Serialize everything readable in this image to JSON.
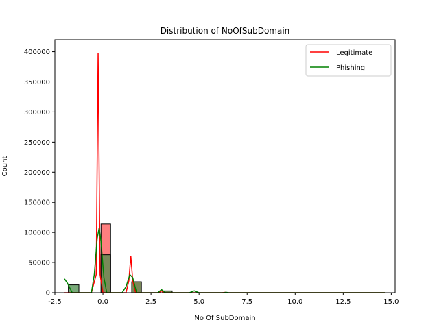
{
  "chart_data": {
    "type": "histogram",
    "title": "Distribution of NoOfSubDomain",
    "xlabel": "No Of SubDomain",
    "ylabel": "Count",
    "xlim": [
      -2.5,
      15.2
    ],
    "ylim": [
      0,
      420000
    ],
    "xticks": [
      -2.5,
      0.0,
      2.5,
      5.0,
      7.5,
      10.0,
      12.5,
      15.0
    ],
    "xtick_labels": [
      "-2.5",
      "0.0",
      "2.5",
      "5.0",
      "7.5",
      "10.0",
      "12.5",
      "15.0"
    ],
    "yticks": [
      0,
      50000,
      100000,
      150000,
      200000,
      250000,
      300000,
      350000,
      400000
    ],
    "ytick_labels": [
      "0",
      "50000",
      "100000",
      "150000",
      "200000",
      "250000",
      "300000",
      "350000",
      "400000"
    ],
    "legend_position": "top-right",
    "series": [
      {
        "name": "Legitimate",
        "color": "#ff0000",
        "bar_fill": "#ff7f7f",
        "bins": [
          {
            "x0": -0.1,
            "x1": 0.4,
            "count": 114000
          },
          {
            "x0": 1.5,
            "x1": 2.0,
            "count": 18000
          },
          {
            "x0": 3.1,
            "x1": 3.6,
            "count": 2500
          }
        ],
        "kde": [
          [
            -2.0,
            0
          ],
          [
            -0.6,
            0
          ],
          [
            -0.35,
            30000
          ],
          [
            -0.25,
            398000
          ],
          [
            -0.15,
            30000
          ],
          [
            0.0,
            0
          ],
          [
            1.2,
            0
          ],
          [
            1.35,
            20000
          ],
          [
            1.45,
            61000
          ],
          [
            1.55,
            20000
          ],
          [
            1.7,
            0
          ],
          [
            2.9,
            0
          ],
          [
            3.05,
            3000
          ],
          [
            3.15,
            0
          ],
          [
            6.2,
            0
          ],
          [
            6.35,
            500
          ],
          [
            6.5,
            0
          ],
          [
            14.7,
            0
          ]
        ]
      },
      {
        "name": "Phishing",
        "color": "#008000",
        "bar_fill": "#4c8c4c",
        "bins": [
          {
            "x0": -1.8,
            "x1": -1.25,
            "count": 13000
          },
          {
            "x0": -0.1,
            "x1": 0.4,
            "count": 63000
          },
          {
            "x0": 1.5,
            "x1": 2.0,
            "count": 18000
          },
          {
            "x0": 3.1,
            "x1": 3.6,
            "count": 3000
          }
        ],
        "kde": [
          [
            -2.0,
            23000
          ],
          [
            -1.85,
            16000
          ],
          [
            -1.6,
            0
          ],
          [
            -1.0,
            0
          ],
          [
            -0.6,
            0
          ],
          [
            -0.45,
            30000
          ],
          [
            -0.3,
            90000
          ],
          [
            -0.2,
            107000
          ],
          [
            -0.1,
            85000
          ],
          [
            0.05,
            25000
          ],
          [
            0.2,
            0
          ],
          [
            1.0,
            0
          ],
          [
            1.2,
            10000
          ],
          [
            1.4,
            30000
          ],
          [
            1.55,
            25000
          ],
          [
            1.75,
            0
          ],
          [
            2.85,
            0
          ],
          [
            3.05,
            5000
          ],
          [
            3.25,
            0
          ],
          [
            4.5,
            0
          ],
          [
            4.75,
            3000
          ],
          [
            5.0,
            0
          ],
          [
            6.3,
            0
          ],
          [
            6.4,
            700
          ],
          [
            6.55,
            0
          ],
          [
            14.7,
            0
          ]
        ]
      }
    ]
  }
}
